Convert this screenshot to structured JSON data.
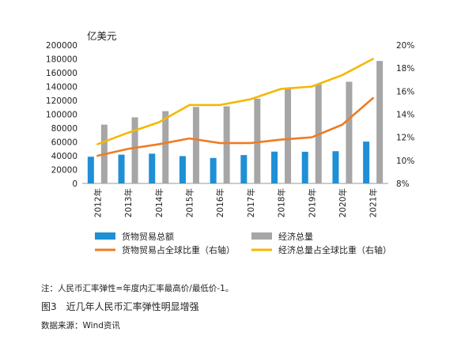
{
  "chart_data": {
    "type": "bar",
    "unit_label": "亿美元",
    "categories": [
      "2012年",
      "2013年",
      "2014年",
      "2015年",
      "2016年",
      "2017年",
      "2018年",
      "2019年",
      "2020年",
      "2021年"
    ],
    "y_left": {
      "min": 0,
      "max": 200000,
      "ticks": [
        "0",
        "20000",
        "40000",
        "60000",
        "80000",
        "100000",
        "120000",
        "140000",
        "160000",
        "180000",
        "200000"
      ]
    },
    "y_right": {
      "min": 8,
      "max": 20,
      "ticks": [
        "8%",
        "10%",
        "12%",
        "14%",
        "16%",
        "18%",
        "20%"
      ]
    },
    "grid": false,
    "legend_position": "bottom",
    "series": [
      {
        "name": "货物贸易总额",
        "kind": "bar",
        "axis": "left",
        "color": "#1f8fd6",
        "values": [
          38600,
          41600,
          43000,
          39500,
          36800,
          41000,
          46000,
          45800,
          46600,
          60500
        ]
      },
      {
        "name": "经济总量",
        "kind": "bar",
        "axis": "left",
        "color": "#a6a6a6",
        "values": [
          85000,
          95500,
          104500,
          110600,
          111500,
          122500,
          138000,
          143500,
          147000,
          177000
        ]
      },
      {
        "name": "货物贸易占全球比重（右轴）",
        "kind": "line",
        "axis": "right",
        "color": "#f07b22",
        "values": [
          10.4,
          11.0,
          11.4,
          11.9,
          11.5,
          11.5,
          11.8,
          12.0,
          13.1,
          15.4
        ]
      },
      {
        "name": "经济总量占全球比重（右轴）",
        "kind": "line",
        "axis": "right",
        "color": "#f5b800",
        "values": [
          11.4,
          12.4,
          13.3,
          14.8,
          14.8,
          15.3,
          16.2,
          16.4,
          17.4,
          18.8
        ]
      }
    ]
  },
  "footnote": "注：人民币汇率弹性=年度内汇率最高价/最低价-1。",
  "caption": "图3　近几年人民币汇率弹性明显增强",
  "source": "数据来源：Wind资讯"
}
